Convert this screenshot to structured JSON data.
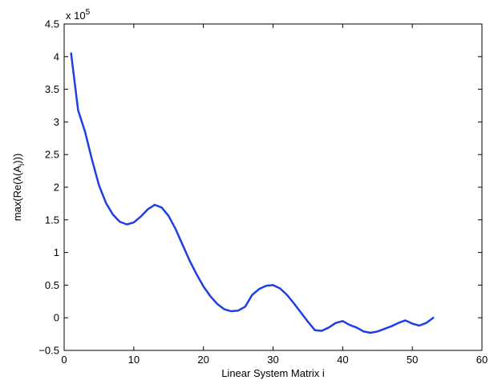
{
  "chart_data": {
    "type": "line",
    "title": "",
    "xlabel": "Linear System Matrix i",
    "ylabel": "max(Re(λ(A_i)))",
    "ylabel_main": "max(Re(λ(A",
    "ylabel_sub": "i",
    "ylabel_tail": ")))",
    "y_multiplier": "x 10",
    "y_multiplier_exp": "5",
    "xlim": [
      0,
      60
    ],
    "ylim": [
      -0.5,
      4.5
    ],
    "x_ticks": [
      0,
      10,
      20,
      30,
      40,
      50,
      60
    ],
    "x_tick_labels": [
      "0",
      "10",
      "20",
      "30",
      "40",
      "50",
      "60"
    ],
    "y_ticks": [
      -0.5,
      0,
      0.5,
      1,
      1.5,
      2,
      2.5,
      3,
      3.5,
      4,
      4.5
    ],
    "y_tick_labels": [
      "−0.5",
      "0",
      "0.5",
      "1",
      "1.5",
      "2",
      "2.5",
      "3",
      "3.5",
      "4",
      "4.5"
    ],
    "grid": false,
    "line_color": "#1f3fe0",
    "series": [
      {
        "x": [
          1,
          2,
          3,
          4,
          5,
          6,
          7,
          8,
          9,
          10,
          11,
          12,
          13,
          14,
          15,
          16,
          17,
          18,
          19,
          20,
          21,
          22,
          23,
          24,
          25,
          26,
          27,
          28,
          29,
          30,
          31,
          32,
          33,
          34,
          35,
          36,
          37,
          38,
          39,
          40,
          41,
          42,
          43,
          44,
          45,
          46,
          47,
          48,
          49,
          50,
          51,
          52,
          53
        ],
        "y": [
          4.05,
          3.18,
          2.85,
          2.42,
          2.03,
          1.76,
          1.58,
          1.47,
          1.43,
          1.46,
          1.55,
          1.66,
          1.73,
          1.69,
          1.56,
          1.36,
          1.12,
          0.88,
          0.67,
          0.48,
          0.33,
          0.21,
          0.13,
          0.1,
          0.11,
          0.17,
          0.35,
          0.44,
          0.49,
          0.5,
          0.45,
          0.35,
          0.22,
          0.08,
          -0.06,
          -0.19,
          -0.2,
          -0.15,
          -0.08,
          -0.05,
          -0.11,
          -0.15,
          -0.21,
          -0.23,
          -0.21,
          -0.17,
          -0.13,
          -0.08,
          -0.04,
          -0.09,
          -0.12,
          -0.08,
          0.0
        ]
      }
    ]
  }
}
